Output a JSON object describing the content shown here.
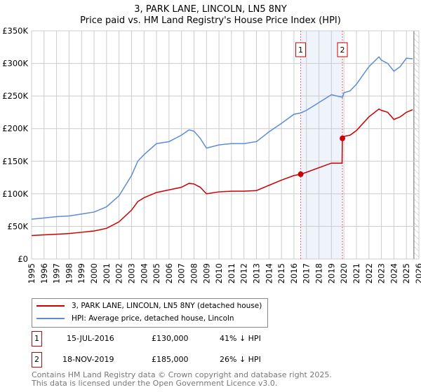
{
  "title": "3, PARK LANE, LINCOLN, LN5 8NY",
  "subtitle": "Price paid vs. HM Land Registry's House Price Index (HPI)",
  "colors": {
    "property": "#cc0000",
    "hpi": "#5b8dd6",
    "band": "#eef3fc"
  },
  "chart_data": {
    "type": "line",
    "xlim": [
      1995,
      2026
    ],
    "ylim": [
      0,
      350000
    ],
    "yticks": [
      {
        "v": 0,
        "label": "£0"
      },
      {
        "v": 50000,
        "label": "£50K"
      },
      {
        "v": 100000,
        "label": "£100K"
      },
      {
        "v": 150000,
        "label": "£150K"
      },
      {
        "v": 200000,
        "label": "£200K"
      },
      {
        "v": 250000,
        "label": "£250K"
      },
      {
        "v": 300000,
        "label": "£300K"
      },
      {
        "v": 350000,
        "label": "£350K"
      }
    ],
    "xticks": [
      "1995",
      "1996",
      "1997",
      "1998",
      "1999",
      "2000",
      "2001",
      "2002",
      "2003",
      "2004",
      "2005",
      "2006",
      "2007",
      "2008",
      "2009",
      "2010",
      "2011",
      "2012",
      "2013",
      "2014",
      "2015",
      "2016",
      "2017",
      "2018",
      "2019",
      "2020",
      "2021",
      "2022",
      "2023",
      "2024",
      "2025",
      "2026"
    ],
    "series": [
      {
        "name": "3, PARK LANE, LINCOLN, LN5 8NY (detached house)",
        "color": "#cc0000",
        "x": [
          1995,
          1996,
          1997,
          1998,
          1999,
          2000,
          2001,
          2002,
          2003,
          2003.5,
          2004,
          2005,
          2006,
          2007,
          2007.6,
          2008,
          2008.5,
          2009,
          2010,
          2011,
          2012,
          2013,
          2014,
          2015,
          2016,
          2016.54,
          2017,
          2018,
          2019,
          2019.85,
          2019.88,
          2020,
          2020.5,
          2021,
          2022,
          2022.8,
          2023,
          2023.5,
          2024,
          2024.5,
          2025,
          2025.5
        ],
        "y": [
          36000,
          37000,
          38000,
          39000,
          41000,
          43000,
          47000,
          57000,
          75000,
          88000,
          94000,
          102000,
          106000,
          110000,
          116000,
          115000,
          110000,
          100000,
          103000,
          104000,
          104000,
          105000,
          113000,
          121000,
          128000,
          130000,
          133000,
          140000,
          147000,
          147000,
          185000,
          188000,
          190000,
          197000,
          218000,
          230000,
          228000,
          225000,
          214000,
          218000,
          225000,
          229000
        ]
      },
      {
        "name": "HPI: Average price, detached house, Lincoln",
        "color": "#5b8dd6",
        "x": [
          1995,
          1996,
          1997,
          1998,
          1999,
          2000,
          2001,
          2002,
          2003,
          2003.5,
          2004,
          2005,
          2006,
          2007,
          2007.6,
          2008,
          2008.5,
          2009,
          2010,
          2011,
          2012,
          2013,
          2014,
          2015,
          2016,
          2016.54,
          2017,
          2018,
          2019,
          2019.88,
          2020,
          2020.5,
          2021,
          2022,
          2022.8,
          2023,
          2023.5,
          2024,
          2024.5,
          2025,
          2025.5
        ],
        "y": [
          61000,
          63000,
          65000,
          66000,
          69000,
          72000,
          80000,
          97000,
          128000,
          150000,
          160000,
          177000,
          180000,
          190000,
          198000,
          196000,
          185000,
          170000,
          175000,
          177000,
          177000,
          180000,
          195000,
          208000,
          222000,
          224000,
          228000,
          240000,
          252000,
          248000,
          255000,
          258000,
          268000,
          295000,
          310000,
          305000,
          300000,
          288000,
          295000,
          308000,
          307000
        ]
      }
    ],
    "annotations": [
      {
        "label": "1",
        "x": 2016.54,
        "y": 130000
      },
      {
        "label": "2",
        "x": 2019.88,
        "y": 185000
      }
    ],
    "shaded_range": [
      2016.54,
      2019.88
    ],
    "hatched_from": 2025.6
  },
  "legend": [
    "3, PARK LANE, LINCOLN, LN5 8NY (detached house)",
    "HPI: Average price, detached house, Lincoln"
  ],
  "sales": [
    {
      "num": "1",
      "date": "15-JUL-2016",
      "price": "£130,000",
      "diff": "41% ↓ HPI"
    },
    {
      "num": "2",
      "date": "18-NOV-2019",
      "price": "£185,000",
      "diff": "26% ↓ HPI"
    }
  ],
  "footer": [
    "Contains HM Land Registry data © Crown copyright and database right 2025.",
    "This data is licensed under the Open Government Licence v3.0."
  ]
}
